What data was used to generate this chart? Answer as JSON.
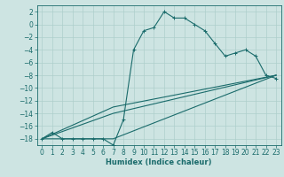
{
  "xlabel": "Humidex (Indice chaleur)",
  "ylabel": "",
  "bg_color": "#cde4e2",
  "grid_color": "#aecfcc",
  "line_color": "#1a6b6b",
  "xlim": [
    -0.5,
    23.5
  ],
  "ylim": [
    -19,
    3
  ],
  "xticks": [
    0,
    1,
    2,
    3,
    4,
    5,
    6,
    7,
    8,
    9,
    10,
    11,
    12,
    13,
    14,
    15,
    16,
    17,
    18,
    19,
    20,
    21,
    22,
    23
  ],
  "yticks": [
    2,
    0,
    -2,
    -4,
    -6,
    -8,
    -10,
    -12,
    -14,
    -16,
    -18
  ],
  "line1_x": [
    0,
    1,
    2,
    3,
    4,
    5,
    6,
    7,
    8,
    9,
    10,
    11,
    12,
    13,
    14,
    15,
    16,
    17,
    18,
    19,
    20,
    21,
    22,
    23
  ],
  "line1_y": [
    -18,
    -17,
    -18,
    -18,
    -18,
    -18,
    -18,
    -19,
    -15,
    -4,
    -1,
    -0.5,
    2,
    1,
    1,
    0,
    -1,
    -3,
    -5,
    -4.5,
    -4,
    -5,
    -8,
    -8.5
  ],
  "line2_x": [
    0,
    7,
    23
  ],
  "line2_y": [
    -18,
    -18,
    -8
  ],
  "line3_x": [
    0,
    7,
    23
  ],
  "line3_y": [
    -18,
    -14,
    -8
  ],
  "line4_x": [
    0,
    7,
    23
  ],
  "line4_y": [
    -18,
    -13,
    -8
  ],
  "xlabel_fontsize": 6,
  "tick_fontsize": 5.5
}
